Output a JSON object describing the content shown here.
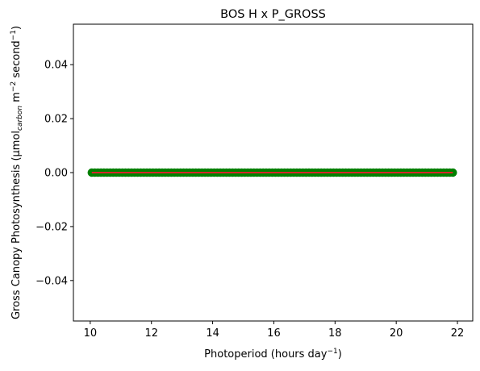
{
  "chart_data": {
    "type": "scatter",
    "title": "BOS H x P_GROSS",
    "xlabel": {
      "base": "Photoperiod (hours day",
      "sup": "−1",
      "tail": ")"
    },
    "ylabel": {
      "p1": "Gross Canopy Photosynthesis (µmol",
      "sub": "carbon",
      "p2": " m",
      "sup1": "−2",
      "p3": " second",
      "sup2": "−1",
      "p4": ")"
    },
    "xlim": [
      9.45,
      22.5
    ],
    "ylim": [
      -0.055,
      0.055
    ],
    "xticks": [
      10,
      12,
      14,
      16,
      18,
      20,
      22
    ],
    "xtick_labels": [
      "10",
      "12",
      "14",
      "16",
      "18",
      "20",
      "22"
    ],
    "yticks": [
      0.04,
      0.02,
      0.0,
      -0.02,
      -0.04
    ],
    "ytick_labels": [
      "0.04",
      "0.02",
      "0.00",
      "−0.02",
      "−0.04"
    ],
    "grid": false,
    "series": [
      {
        "kind": "points",
        "color": "#008000",
        "x_start": 10.05,
        "x_end": 21.85,
        "x_step": 0.1,
        "y": 0.0
      },
      {
        "kind": "line",
        "color": "#d62728",
        "x": [
          10.05,
          21.85
        ],
        "y": [
          0.0,
          0.0
        ]
      }
    ]
  }
}
